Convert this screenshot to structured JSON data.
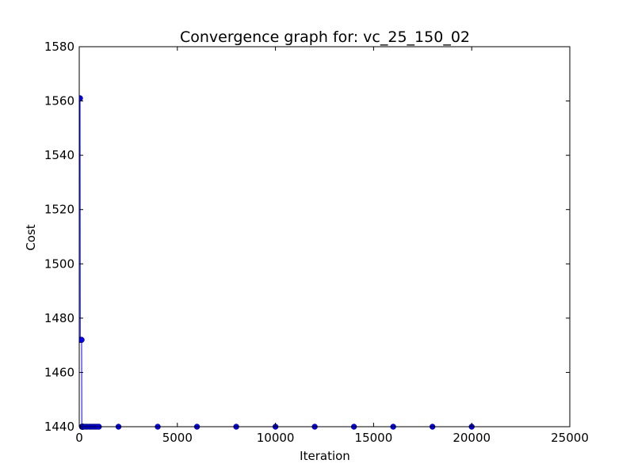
{
  "chart_data": {
    "type": "line",
    "title": "Convergence graph for: vc_25_150_02",
    "xlabel": "Iteration",
    "ylabel": "Cost",
    "xlim": [
      0,
      25000
    ],
    "ylim": [
      1440,
      1580
    ],
    "xticks": [
      0,
      5000,
      10000,
      15000,
      20000,
      25000
    ],
    "yticks": [
      1440,
      1460,
      1480,
      1500,
      1520,
      1540,
      1560,
      1580
    ],
    "grid": false,
    "series": [
      {
        "color": "#0000ff",
        "x": [
          0,
          10,
          20,
          30,
          40,
          50,
          60,
          70,
          80,
          90,
          100,
          110,
          120,
          130,
          140,
          150,
          160,
          170,
          180,
          190,
          200,
          300,
          400,
          500,
          600,
          700,
          800,
          900,
          1000,
          2000,
          4000,
          6000,
          8000,
          10000,
          12000,
          14000,
          16000,
          18000,
          20000
        ],
        "y": [
          1561,
          1561,
          1561,
          1561,
          1561,
          1472,
          1472,
          1472,
          1472,
          1472,
          1472,
          1472,
          1472,
          1440,
          1440,
          1440,
          1440,
          1440,
          1440,
          1440,
          1440,
          1440,
          1440,
          1440,
          1440,
          1440,
          1440,
          1440,
          1440,
          1440,
          1440,
          1440,
          1440,
          1440,
          1440,
          1440,
          1440,
          1440,
          1440
        ]
      }
    ]
  }
}
